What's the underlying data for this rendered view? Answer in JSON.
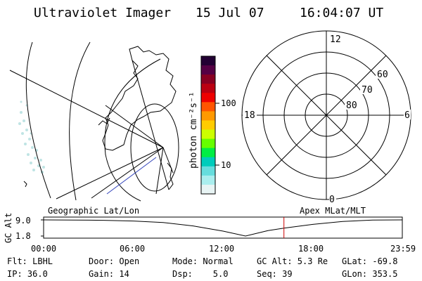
{
  "header": {
    "title": "Ultraviolet Imager",
    "date": "15 Jul 07",
    "time": "16:04:07 UT"
  },
  "map_panel": {
    "label": "Geographic Lat/Lon"
  },
  "colorbar": {
    "unit_label": "photon cm⁻²s⁻¹",
    "tick_labels": [
      "100",
      "10"
    ],
    "colors": [
      "#220033",
      "#550044",
      "#880022",
      "#bb0011",
      "#ee0000",
      "#ff5500",
      "#ff9900",
      "#ffcc00",
      "#ccff00",
      "#66ff00",
      "#00ee44",
      "#00ccbb",
      "#66dddd",
      "#aaeeee",
      "#e8f4f4"
    ]
  },
  "polar_panel": {
    "label": "Apex MLat/MLT",
    "mlt_labels": {
      "top": "12",
      "left": "18",
      "right": "6",
      "bottom": "0"
    },
    "lat_labels": [
      "60",
      "70",
      "80"
    ]
  },
  "altitude_plot": {
    "ylabel": "GC Alt",
    "ytick_labels": [
      "9.0",
      "1.8"
    ],
    "xtick_labels": [
      "00:00",
      "06:00",
      "12:00",
      "18:00",
      "23:59"
    ]
  },
  "info": {
    "flt": "Flt: LBHL",
    "door": "Door: Open",
    "mode": "Mode: Normal",
    "gc_alt": "GC Alt: 5.3 Re",
    "glat": "GLat: -69.8",
    "ip": "IP: 36.0",
    "gain": "Gain: 14",
    "dsp": "Dsp:    5.0",
    "seq": "Seq: 39",
    "glon": "GLon: 353.5"
  },
  "chart_data": {
    "type": "line",
    "x": [
      "00:00",
      "02:00",
      "04:00",
      "06:00",
      "08:00",
      "10:00",
      "12:00",
      "13:30",
      "15:00",
      "16:04",
      "18:00",
      "20:00",
      "22:00",
      "23:59"
    ],
    "values": [
      9.0,
      8.95,
      8.8,
      8.5,
      7.8,
      6.3,
      4.0,
      1.8,
      4.2,
      5.3,
      7.0,
      8.3,
      8.9,
      9.0
    ],
    "ylim": [
      1.8,
      9.0
    ],
    "current_time": "16:04"
  }
}
